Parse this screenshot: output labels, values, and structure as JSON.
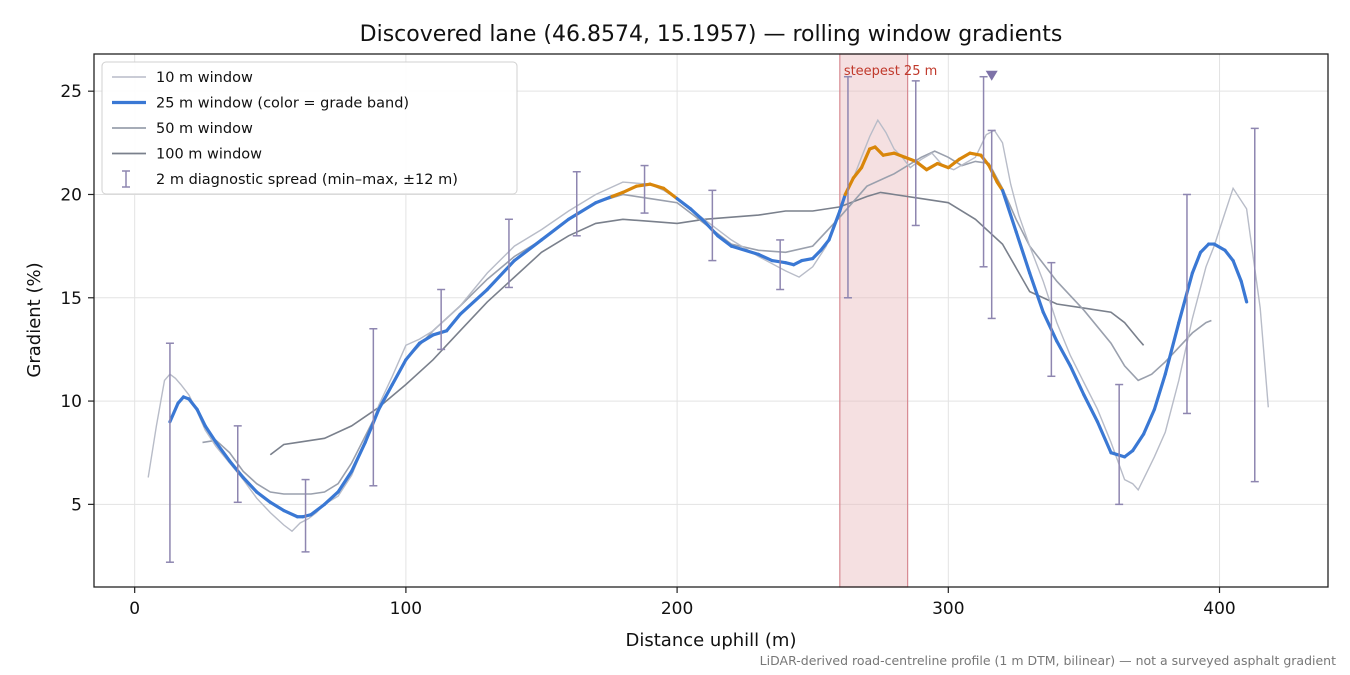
{
  "chart_data": {
    "type": "line",
    "title": "Discovered lane (46.8574, 15.1957) — rolling window gradients",
    "xlabel": "Distance uphill (m)",
    "ylabel": "Gradient (%)",
    "footnote": "LiDAR-derived road-centreline profile (1 m DTM, bilinear) — not a surveyed asphalt gradient",
    "xlim": [
      -15,
      440
    ],
    "ylim": [
      1.0,
      26.8
    ],
    "xticks": [
      0,
      100,
      200,
      300,
      400
    ],
    "yticks": [
      5,
      10,
      15,
      20,
      25
    ],
    "grid": true,
    "legend_placement": "top-left",
    "highlight": {
      "x_start": 260,
      "x_end": 285,
      "label": "steepest 25 m",
      "color": "#c0392b"
    },
    "marker": {
      "x": 316,
      "y": 25.75
    },
    "colors": {
      "w10": "#b8bcc8",
      "w25": "#3a78d4",
      "w25_steep": "#d9860a",
      "w50": "#9aa0ad",
      "w100": "#7a808c",
      "errorbar": "#8e86b0",
      "band": "#e8b4b8"
    },
    "series": [
      {
        "name": "10 m window",
        "x": [
          5,
          8,
          11,
          13,
          15,
          17,
          20,
          23,
          26,
          30,
          35,
          40,
          45,
          50,
          55,
          58,
          61,
          64,
          67,
          70,
          75,
          80,
          85,
          90,
          95,
          100,
          105,
          110,
          115,
          120,
          125,
          130,
          140,
          150,
          160,
          170,
          180,
          190,
          195,
          200,
          210,
          220,
          230,
          240,
          245,
          250,
          255,
          260,
          265,
          268,
          271,
          274,
          277,
          280,
          283,
          286,
          290,
          294,
          298,
          302,
          306,
          310,
          314,
          317,
          320,
          323,
          326,
          330,
          335,
          340,
          345,
          350,
          355,
          360,
          365,
          368,
          370,
          373,
          376,
          380,
          385,
          390,
          395,
          398,
          400,
          402,
          405,
          410,
          415,
          418
        ],
        "y": [
          6.3,
          8.8,
          11.0,
          11.3,
          11.1,
          10.8,
          10.3,
          9.5,
          8.6,
          7.8,
          7.0,
          6.2,
          5.3,
          4.6,
          4.0,
          3.7,
          4.1,
          4.3,
          4.6,
          5.0,
          5.4,
          6.4,
          8.0,
          9.8,
          11.2,
          12.7,
          13.0,
          13.4,
          14.0,
          14.6,
          15.4,
          16.2,
          17.5,
          18.3,
          19.2,
          20.0,
          20.6,
          20.5,
          20.2,
          19.8,
          18.8,
          17.8,
          17.0,
          16.3,
          16.0,
          16.5,
          17.5,
          19.3,
          20.8,
          21.8,
          22.8,
          23.6,
          23.0,
          22.2,
          21.8,
          21.3,
          21.7,
          22.0,
          21.4,
          21.2,
          21.5,
          21.8,
          22.9,
          23.1,
          22.5,
          20.5,
          19.0,
          17.5,
          15.8,
          13.8,
          12.2,
          10.9,
          9.6,
          8.0,
          6.2,
          6.0,
          5.7,
          6.5,
          7.3,
          8.5,
          11.0,
          14.0,
          16.5,
          17.5,
          18.3,
          19.1,
          20.3,
          19.3,
          14.5,
          9.7
        ]
      },
      {
        "name": "25 m window (color = grade band)",
        "x": [
          13,
          16,
          18,
          20,
          23,
          26,
          30,
          35,
          40,
          45,
          50,
          55,
          60,
          62,
          65,
          70,
          75,
          80,
          85,
          90,
          95,
          100,
          105,
          110,
          115,
          120,
          130,
          140,
          150,
          160,
          170,
          176,
          180,
          185,
          190,
          195,
          200,
          205,
          210,
          215,
          220,
          230,
          235,
          240,
          243,
          246,
          250,
          253,
          256,
          260,
          262,
          265,
          268,
          271,
          273,
          276,
          280,
          284,
          288,
          292,
          296,
          300,
          304,
          308,
          312,
          315,
          318,
          320,
          325,
          330,
          335,
          340,
          345,
          350,
          355,
          360,
          365,
          368,
          372,
          376,
          380,
          385,
          390,
          393,
          396,
          398,
          402,
          405,
          408,
          410
        ],
        "y": [
          9.0,
          9.9,
          10.2,
          10.1,
          9.6,
          8.8,
          8.0,
          7.1,
          6.3,
          5.6,
          5.1,
          4.7,
          4.4,
          4.4,
          4.5,
          5.0,
          5.6,
          6.6,
          8.0,
          9.6,
          10.8,
          12.0,
          12.8,
          13.2,
          13.4,
          14.2,
          15.4,
          16.8,
          17.8,
          18.8,
          19.6,
          19.9,
          20.1,
          20.4,
          20.5,
          20.3,
          19.8,
          19.3,
          18.7,
          18.0,
          17.5,
          17.1,
          16.8,
          16.7,
          16.6,
          16.8,
          16.9,
          17.3,
          17.8,
          19.2,
          20.0,
          20.8,
          21.3,
          22.2,
          22.3,
          21.9,
          22.0,
          21.8,
          21.6,
          21.2,
          21.5,
          21.3,
          21.7,
          22.0,
          21.9,
          21.4,
          20.6,
          20.2,
          18.2,
          16.2,
          14.3,
          12.9,
          11.7,
          10.3,
          9.0,
          7.5,
          7.3,
          7.6,
          8.4,
          9.6,
          11.3,
          13.8,
          16.2,
          17.2,
          17.6,
          17.6,
          17.3,
          16.8,
          15.8,
          14.8
        ],
        "band": [
          "blue",
          "blue",
          "blue",
          "blue",
          "blue",
          "blue",
          "blue",
          "blue",
          "blue",
          "blue",
          "blue",
          "blue",
          "blue",
          "blue",
          "blue",
          "blue",
          "blue",
          "blue",
          "blue",
          "blue",
          "blue",
          "blue",
          "blue",
          "blue",
          "blue",
          "blue",
          "blue",
          "blue",
          "blue",
          "blue",
          "blue",
          "orange",
          "orange",
          "orange",
          "orange",
          "orange",
          "blue",
          "blue",
          "blue",
          "blue",
          "blue",
          "blue",
          "blue",
          "blue",
          "blue",
          "blue",
          "blue",
          "blue",
          "blue",
          "blue",
          "orange",
          "orange",
          "orange",
          "orange",
          "orange",
          "orange",
          "orange",
          "orange",
          "orange",
          "orange",
          "orange",
          "orange",
          "orange",
          "orange",
          "orange",
          "orange",
          "orange",
          "blue",
          "blue",
          "blue",
          "blue",
          "blue",
          "blue",
          "blue",
          "blue",
          "blue",
          "blue",
          "blue",
          "blue",
          "blue",
          "blue",
          "blue",
          "blue",
          "blue",
          "blue",
          "blue",
          "blue",
          "blue",
          "blue",
          "blue"
        ]
      },
      {
        "name": "50 m window",
        "x": [
          25,
          30,
          35,
          40,
          45,
          50,
          55,
          60,
          65,
          70,
          75,
          80,
          85,
          90,
          95,
          100,
          110,
          120,
          130,
          140,
          150,
          160,
          170,
          180,
          190,
          200,
          210,
          220,
          230,
          240,
          250,
          260,
          270,
          280,
          290,
          295,
          300,
          305,
          310,
          315,
          320,
          325,
          330,
          340,
          350,
          360,
          365,
          370,
          375,
          380,
          385,
          390,
          395,
          397
        ],
        "y": [
          8.0,
          8.1,
          7.5,
          6.6,
          6.0,
          5.6,
          5.5,
          5.5,
          5.5,
          5.6,
          6.0,
          7.0,
          8.3,
          9.6,
          10.8,
          12.0,
          13.4,
          14.6,
          15.9,
          17.0,
          17.8,
          18.8,
          19.6,
          20.0,
          19.8,
          19.6,
          18.6,
          17.6,
          17.3,
          17.2,
          17.5,
          18.9,
          20.4,
          21.0,
          21.8,
          22.1,
          21.8,
          21.4,
          21.6,
          21.5,
          20.3,
          18.8,
          17.5,
          15.8,
          14.4,
          12.8,
          11.7,
          11.0,
          11.3,
          11.9,
          12.6,
          13.3,
          13.8,
          13.9
        ]
      },
      {
        "name": "100 m window",
        "x": [
          50,
          55,
          60,
          70,
          80,
          90,
          100,
          110,
          120,
          130,
          140,
          150,
          160,
          170,
          180,
          190,
          200,
          210,
          220,
          230,
          240,
          250,
          260,
          270,
          275,
          280,
          290,
          300,
          310,
          320,
          330,
          340,
          350,
          360,
          365,
          370,
          372
        ],
        "y": [
          7.4,
          7.9,
          8.0,
          8.2,
          8.8,
          9.7,
          10.8,
          12.0,
          13.4,
          14.8,
          16.0,
          17.2,
          18.0,
          18.6,
          18.8,
          18.7,
          18.6,
          18.8,
          18.9,
          19.0,
          19.2,
          19.2,
          19.4,
          19.9,
          20.1,
          20.0,
          19.8,
          19.6,
          18.8,
          17.6,
          15.3,
          14.7,
          14.5,
          14.3,
          13.8,
          13.0,
          12.7
        ]
      }
    ],
    "diagnostic_spread": {
      "name": "2 m diagnostic spread (min–max, ±12 m)",
      "x": [
        13,
        38,
        63,
        88,
        113,
        138,
        163,
        188,
        213,
        238,
        263,
        288,
        313,
        316,
        338,
        363,
        388,
        413
      ],
      "min": [
        2.2,
        5.1,
        2.7,
        5.9,
        12.5,
        15.5,
        18.0,
        19.1,
        16.8,
        15.4,
        15.0,
        18.5,
        16.5,
        14.0,
        11.2,
        5.0,
        9.4,
        6.1
      ],
      "max": [
        12.8,
        8.8,
        6.2,
        13.5,
        15.4,
        18.8,
        21.1,
        21.4,
        20.2,
        17.8,
        25.7,
        25.5,
        25.7,
        23.1,
        16.7,
        10.8,
        20.0,
        23.2
      ]
    }
  }
}
